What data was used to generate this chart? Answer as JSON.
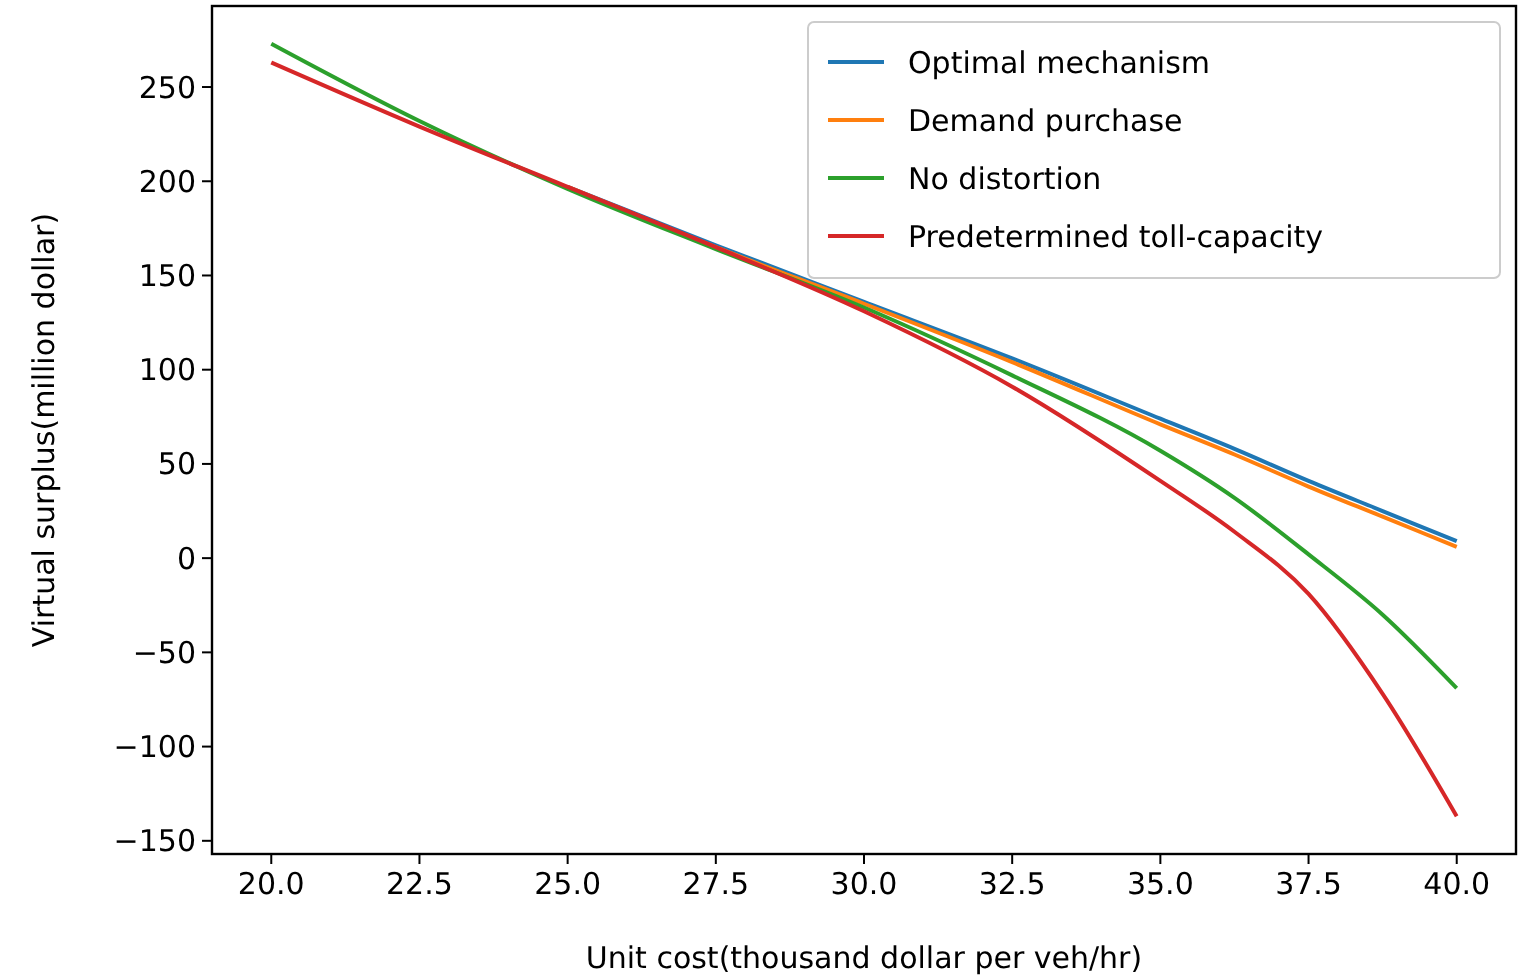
{
  "chart_data": {
    "type": "line",
    "xlabel": "Unit cost(thousand dollar per veh/hr)",
    "ylabel": "Virtual surplus(million dollar)",
    "x": [
      20,
      22.5,
      25,
      27.5,
      30,
      32.5,
      35,
      36.25,
      37.5,
      38.75,
      40
    ],
    "series": [
      {
        "name": "Optimal mechanism",
        "color": "#1f77b4",
        "values": [
          null,
          null,
          197,
          166,
          136,
          106,
          74,
          58,
          41,
          25,
          9
        ]
      },
      {
        "name": "Demand purchase",
        "color": "#ff7f0e",
        "values": [
          null,
          null,
          197,
          165,
          135,
          104,
          71,
          55,
          38,
          22,
          6
        ]
      },
      {
        "name": "No distortion",
        "color": "#2ca02c",
        "values": [
          273,
          232,
          196,
          164,
          133,
          97,
          57,
          32,
          2,
          -30,
          -69
        ]
      },
      {
        "name": "Predetermined toll-capacity",
        "color": "#d62728",
        "values": [
          263,
          229,
          197,
          165,
          131,
          91,
          41,
          14,
          -19,
          -72,
          -137
        ]
      }
    ],
    "xlim": [
      19,
      41
    ],
    "xticks": [
      {
        "value": 20,
        "label": "20.0"
      },
      {
        "value": 22.5,
        "label": "22.5"
      },
      {
        "value": 25,
        "label": "25.0"
      },
      {
        "value": 27.5,
        "label": "27.5"
      },
      {
        "value": 30,
        "label": "30.0"
      },
      {
        "value": 32.5,
        "label": "32.5"
      },
      {
        "value": 35,
        "label": "35.0"
      },
      {
        "value": 37.5,
        "label": "37.5"
      },
      {
        "value": 40,
        "label": "40.0"
      }
    ],
    "ylim": [
      -157,
      293
    ],
    "yticks": [
      -150,
      -100,
      -50,
      0,
      50,
      100,
      150,
      200,
      250
    ],
    "legend": "top right",
    "grid": false
  }
}
